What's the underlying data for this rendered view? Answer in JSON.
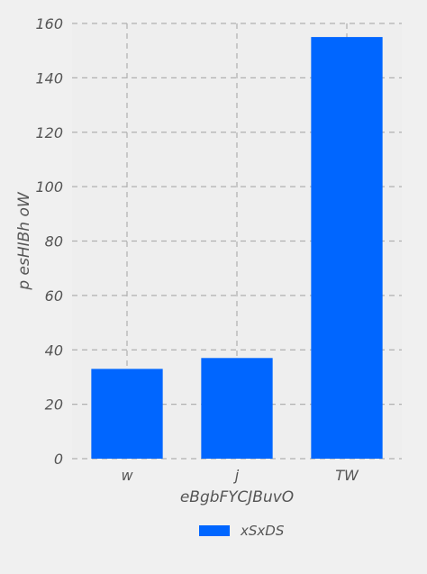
{
  "chart_data": {
    "type": "bar",
    "categories": [
      "w",
      "j",
      "TW"
    ],
    "series": [
      {
        "name": "xSxDS",
        "values": [
          33,
          37,
          155
        ],
        "color": "#0066ff"
      }
    ],
    "xlabel": "eBgbFYCJBuvO",
    "ylabel": "p esHIBh oW",
    "ylim": [
      0,
      160
    ],
    "yticks": [
      0,
      20,
      40,
      60,
      80,
      100,
      120,
      140,
      160
    ],
    "grid": true,
    "legend_position": "bottom-center",
    "colors": {
      "background": "#f0f0f0",
      "plot_background": "#eeeeee",
      "grid": "#b0b0b0",
      "bar": "#0066ff",
      "text": "#555555"
    }
  }
}
